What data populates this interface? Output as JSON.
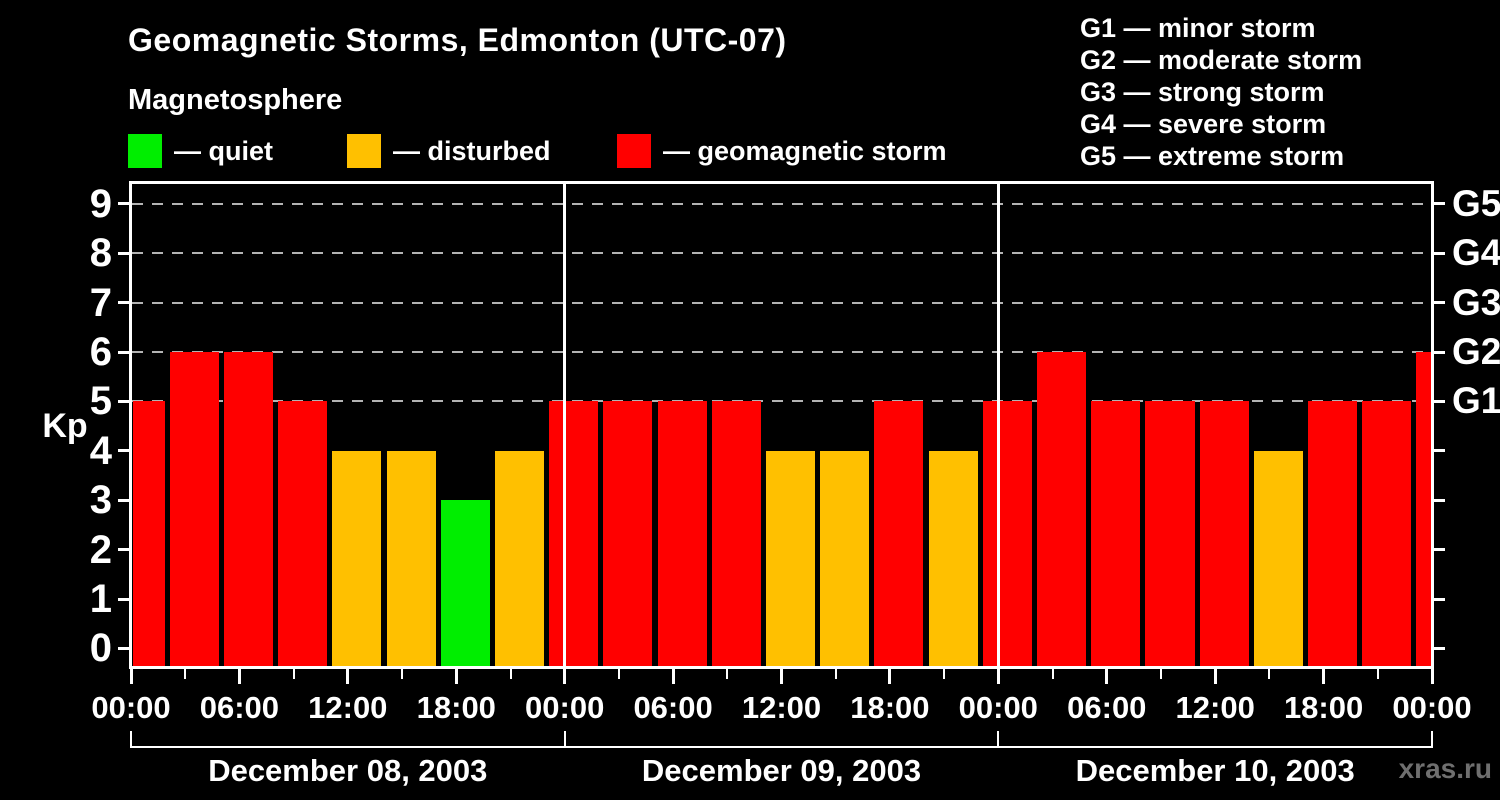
{
  "title": "Geomagnetic Storms, Edmonton (UTC-07)",
  "subtitle": "Magnetosphere",
  "watermark": "xras.ru",
  "watermark_color": "#6F6F6F",
  "condition_legend": [
    {
      "name": "quiet",
      "label": "— quiet",
      "color": "#00EE00"
    },
    {
      "name": "disturbed",
      "label": "— disturbed",
      "color": "#FFC000"
    },
    {
      "name": "storm",
      "label": "— geomagnetic storm",
      "color": "#FF0000"
    }
  ],
  "g_scale_legend": [
    "G1 — minor storm",
    "G2 — moderate storm",
    "G3 — strong storm",
    "G4 — severe storm",
    "G5 — extreme storm"
  ],
  "chart_data": {
    "type": "bar",
    "title": "Geomagnetic Storms, Edmonton (UTC-07)",
    "ylabel": "Kp",
    "ylim": [
      0,
      9
    ],
    "yticks": [
      0,
      1,
      2,
      3,
      4,
      5,
      6,
      7,
      8,
      9
    ],
    "gridlines_at_kp": [
      5,
      6,
      7,
      8,
      9
    ],
    "grid_style": "dashed",
    "right_axis_ticks": [
      {
        "kp": 5,
        "label": "G1"
      },
      {
        "kp": 6,
        "label": "G2"
      },
      {
        "kp": 7,
        "label": "G3"
      },
      {
        "kp": 8,
        "label": "G4"
      },
      {
        "kp": 9,
        "label": "G5"
      }
    ],
    "x_tick_label_cycle": [
      "00:00",
      "06:00",
      "12:00",
      "18:00"
    ],
    "x_minor_tick_hours": 3,
    "x_major_tick_hours": 6,
    "bar_interval_hours": 3,
    "color_thresholds": {
      "quiet_max_kp": 3,
      "disturbed_max_kp": 4,
      "storm_min_kp": 5
    },
    "colors": {
      "quiet": "#00EE00",
      "disturbed": "#FFC000",
      "storm": "#FF0000"
    },
    "days": [
      {
        "date": "December 08, 2003",
        "kp": [
          5,
          6,
          6,
          5,
          4,
          4,
          3,
          4
        ]
      },
      {
        "date": "December 09, 2003",
        "kp": [
          5,
          5,
          5,
          5,
          4,
          4,
          5,
          4
        ]
      },
      {
        "date": "December 10, 2003",
        "kp": [
          5,
          6,
          5,
          5,
          5,
          4,
          5,
          5
        ]
      }
    ],
    "partial_next_interval_kp": 6
  }
}
